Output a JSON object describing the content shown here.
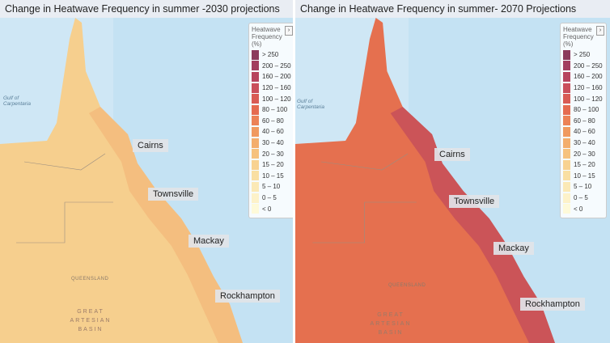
{
  "legend": {
    "title": "Heatwave Frequency (%)",
    "items": [
      {
        "label": "> 250",
        "color": "#8c3b5c"
      },
      {
        "label": "200 – 250",
        "color": "#a23e5e"
      },
      {
        "label": "160 – 200",
        "color": "#b7455e"
      },
      {
        "label": "120 – 160",
        "color": "#ca4f5b"
      },
      {
        "label": "100 – 120",
        "color": "#d95b54"
      },
      {
        "label": "80 – 100",
        "color": "#e56b50"
      },
      {
        "label": "60 – 80",
        "color": "#ec8256"
      },
      {
        "label": "40 – 60",
        "color": "#f09a5f"
      },
      {
        "label": "30 – 40",
        "color": "#f3ae6c"
      },
      {
        "label": "20 – 30",
        "color": "#f6c27d"
      },
      {
        "label": "15 – 20",
        "color": "#f8d290"
      },
      {
        "label": "10 – 15",
        "color": "#f9dfa2"
      },
      {
        "label": "5 – 10",
        "color": "#fbe9b6"
      },
      {
        "label": "0 – 5",
        "color": "#fdf2c9"
      },
      {
        "label": "< 0",
        "color": "#fefad9"
      }
    ]
  },
  "panels": [
    {
      "title": "Change in Heatwave Frequency in summer -2030 projections",
      "land_color": "#f6cf8e",
      "coast_color": "#f3b87a",
      "cities": [
        "Cairns",
        "Townsville",
        "Mackay",
        "Rockhampton"
      ],
      "map_labels": [
        "Gulf of Carpentaria",
        "QUEENSLAND",
        "GREAT ARTESIAN BASIN"
      ]
    },
    {
      "title": "Change in Heatwave Frequency in summer- 2070 Projections",
      "land_color": "#e5704f",
      "coast_color": "#c24b5b",
      "cities": [
        "Cairns",
        "Townsville",
        "Mackay",
        "Rockhampton"
      ],
      "map_labels": [
        "Gulf of Carpentaria",
        "QUEENSLAND",
        "GREAT ARTESIAN BASIN"
      ]
    }
  ]
}
